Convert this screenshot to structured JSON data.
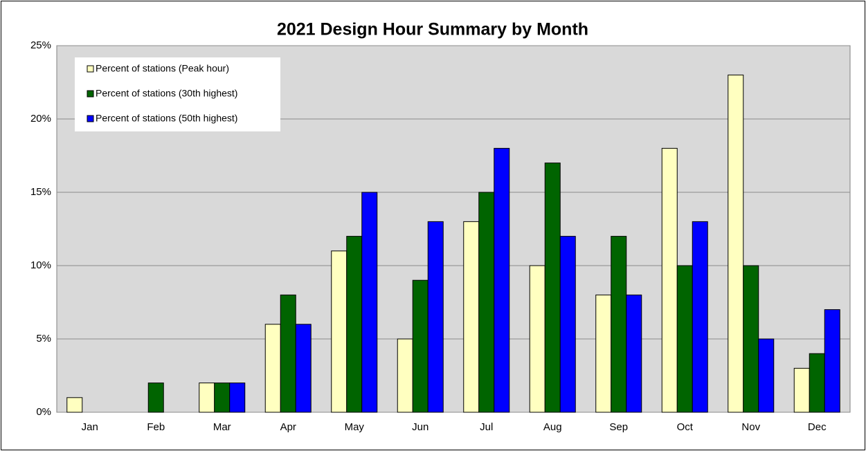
{
  "chart_data": {
    "type": "bar",
    "title": "2021 Design Hour Summary by Month",
    "categories": [
      "Jan",
      "Feb",
      "Mar",
      "Apr",
      "May",
      "Jun",
      "Jul",
      "Aug",
      "Sep",
      "Oct",
      "Nov",
      "Dec"
    ],
    "series": [
      {
        "name": "Percent of stations (Peak hour)",
        "color": "#ffffc0",
        "values": [
          1,
          0,
          2,
          6,
          11,
          5,
          13,
          10,
          8,
          18,
          23,
          3
        ]
      },
      {
        "name": "Percent of stations (30th highest)",
        "color": "#006400",
        "values": [
          0,
          2,
          2,
          8,
          12,
          9,
          15,
          17,
          12,
          10,
          10,
          4
        ]
      },
      {
        "name": "Percent of stations (50th highest)",
        "color": "#0000ff",
        "values": [
          0,
          0,
          2,
          6,
          15,
          13,
          18,
          12,
          8,
          13,
          5,
          7
        ]
      }
    ],
    "ylim": [
      0,
      25
    ],
    "yticks": [
      {
        "value": 0,
        "label": "0%"
      },
      {
        "value": 5,
        "label": "5%"
      },
      {
        "value": 10,
        "label": "10%"
      },
      {
        "value": 15,
        "label": "15%"
      },
      {
        "value": 20,
        "label": "20%"
      },
      {
        "value": 25,
        "label": "25%"
      }
    ],
    "grid": true,
    "legend": "upper left"
  }
}
